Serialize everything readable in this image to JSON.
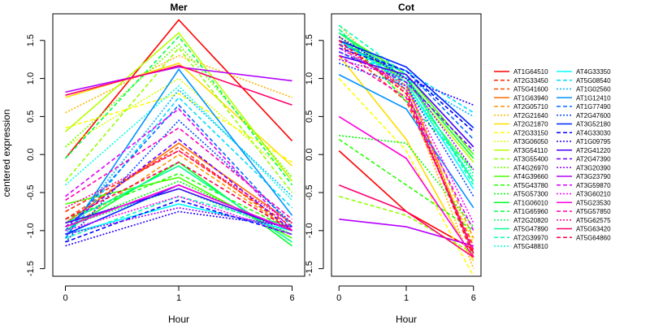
{
  "chart_data": [
    {
      "type": "line",
      "title": "Mer",
      "xlabel": "Hour",
      "ylabel": "centered expression",
      "x": [
        "0",
        "1",
        "6"
      ],
      "ylim": [
        -1.6,
        1.85
      ],
      "yticks": [
        -1.5,
        -1.0,
        -0.5,
        0.0,
        0.5,
        1.0,
        1.5
      ],
      "series": [
        {
          "name": "AT1G64510",
          "values": [
            -0.05,
            1.77,
            0.18
          ]
        },
        {
          "name": "AT2G33450",
          "values": [
            -0.75,
            0.05,
            -0.95
          ]
        },
        {
          "name": "AT5G41600",
          "values": [
            -0.85,
            0.1,
            -1.0
          ]
        },
        {
          "name": "AT1G63940",
          "values": [
            -0.9,
            0.15,
            -0.9
          ]
        },
        {
          "name": "AT2G05710",
          "values": [
            -1.0,
            0.0,
            -1.0
          ]
        },
        {
          "name": "AT2G21640",
          "values": [
            0.55,
            1.3,
            0.75
          ]
        },
        {
          "name": "AT2G21870",
          "values": [
            0.75,
            1.2,
            -0.15
          ]
        },
        {
          "name": "AT2G33150",
          "values": [
            0.35,
            0.8,
            -0.1
          ]
        },
        {
          "name": "AT3G06050",
          "values": [
            0.1,
            1.0,
            -0.3
          ]
        },
        {
          "name": "AT3G54110",
          "values": [
            0.3,
            1.6,
            -0.35
          ]
        },
        {
          "name": "AT3G55400",
          "values": [
            -0.35,
            1.4,
            -0.5
          ]
        },
        {
          "name": "AT4G26970",
          "values": [
            0.1,
            1.45,
            -0.3
          ]
        },
        {
          "name": "AT4G39660",
          "values": [
            -0.65,
            -0.3,
            -1.1
          ]
        },
        {
          "name": "AT5G43780",
          "values": [
            -0.85,
            -0.25,
            -1.0
          ]
        },
        {
          "name": "AT5G57300",
          "values": [
            -0.95,
            -0.35,
            -1.05
          ]
        },
        {
          "name": "AT1G06010",
          "values": [
            -1.0,
            -0.1,
            -1.2
          ]
        },
        {
          "name": "AT1G65960",
          "values": [
            -0.05,
            1.55,
            -0.4
          ]
        },
        {
          "name": "AT2G20820",
          "values": [
            -0.95,
            -0.45,
            -1.05
          ]
        },
        {
          "name": "AT5G47890",
          "values": [
            -0.9,
            -0.15,
            -1.15
          ]
        },
        {
          "name": "AT2G39970",
          "values": [
            -1.1,
            -0.55,
            -0.95
          ]
        },
        {
          "name": "AT5G48810",
          "values": [
            -0.4,
            0.9,
            -0.6
          ]
        },
        {
          "name": "AT4G33350",
          "values": [
            -1.05,
            -0.65,
            -1.0
          ]
        },
        {
          "name": "AT5G08540",
          "values": [
            -1.1,
            0.75,
            -0.7
          ]
        },
        {
          "name": "AT1G02560",
          "values": [
            -1.05,
            0.85,
            -0.55
          ]
        },
        {
          "name": "AT1G12410",
          "values": [
            -1.1,
            1.12,
            -0.8
          ]
        },
        {
          "name": "AT1G77490",
          "values": [
            -1.0,
            0.65,
            -0.95
          ]
        },
        {
          "name": "AT2G47600",
          "values": [
            -1.15,
            0.45,
            -0.9
          ]
        },
        {
          "name": "AT3G52180",
          "values": [
            -1.05,
            -0.4,
            -1.0
          ]
        },
        {
          "name": "AT4G33030",
          "values": [
            -1.15,
            -0.6,
            -1.05
          ]
        },
        {
          "name": "AT1G09795",
          "values": [
            -1.2,
            -0.75,
            -0.95
          ]
        },
        {
          "name": "AT2G41220",
          "values": [
            -0.9,
            -0.45,
            -1.0
          ]
        },
        {
          "name": "AT2G47390",
          "values": [
            -0.95,
            0.2,
            -1.0
          ]
        },
        {
          "name": "AT3G20390",
          "values": [
            -1.05,
            -0.7,
            -0.95
          ]
        },
        {
          "name": "AT3G23790",
          "values": [
            0.82,
            1.15,
            0.97
          ]
        },
        {
          "name": "AT3G59870",
          "values": [
            -0.55,
            0.6,
            -1.0
          ]
        },
        {
          "name": "AT3G60210",
          "values": [
            -1.0,
            -0.55,
            -1.05
          ]
        },
        {
          "name": "AT5G23530",
          "values": [
            -0.95,
            -0.4,
            -1.0
          ]
        },
        {
          "name": "AT5G57850",
          "values": [
            -0.6,
            0.35,
            -0.85
          ]
        },
        {
          "name": "AT5G62575",
          "values": [
            -0.7,
            0.05,
            -0.9
          ]
        },
        {
          "name": "AT5G63420",
          "values": [
            0.78,
            1.17,
            0.65
          ]
        },
        {
          "name": "AT5G64860",
          "values": [
            -0.85,
            -0.1,
            -1.0
          ]
        }
      ]
    },
    {
      "type": "line",
      "title": "Cot",
      "xlabel": "Hour",
      "ylabel": "",
      "x": [
        "0",
        "1",
        "6"
      ],
      "ylim": [
        -1.6,
        1.85
      ],
      "yticks": [
        -1.5,
        -1.0,
        -0.5,
        0.0,
        0.5,
        1.0,
        1.5
      ],
      "series": [
        {
          "name": "AT1G64510",
          "values": [
            0.05,
            -0.75,
            -1.25
          ]
        },
        {
          "name": "AT2G33450",
          "values": [
            1.5,
            0.85,
            -1.35
          ]
        },
        {
          "name": "AT5G41600",
          "values": [
            1.45,
            0.7,
            -1.2
          ]
        },
        {
          "name": "AT1G63940",
          "values": [
            1.6,
            0.95,
            -1.3
          ]
        },
        {
          "name": "AT2G05710",
          "values": [
            1.55,
            0.9,
            -1.1
          ]
        },
        {
          "name": "AT2G21640",
          "values": [
            1.7,
            0.8,
            -1.5
          ]
        },
        {
          "name": "AT2G21870",
          "values": [
            1.3,
            0.2,
            -1.4
          ]
        },
        {
          "name": "AT2G33150",
          "values": [
            1.0,
            0.05,
            -1.6
          ]
        },
        {
          "name": "AT3G06050",
          "values": [
            1.55,
            0.75,
            -1.15
          ]
        },
        {
          "name": "AT3G54110",
          "values": [
            1.6,
            0.95,
            -0.1
          ]
        },
        {
          "name": "AT3G55400",
          "values": [
            -0.55,
            -0.8,
            -1.3
          ]
        },
        {
          "name": "AT4G26970",
          "values": [
            1.45,
            0.85,
            -0.2
          ]
        },
        {
          "name": "AT4G39660",
          "values": [
            1.6,
            1.05,
            0.0
          ]
        },
        {
          "name": "AT5G43780",
          "values": [
            0.2,
            -0.4,
            -1.0
          ]
        },
        {
          "name": "AT5G57300",
          "values": [
            0.25,
            0.15,
            -0.95
          ]
        },
        {
          "name": "AT1G06010",
          "values": [
            1.5,
            1.0,
            -0.05
          ]
        },
        {
          "name": "AT1G65960",
          "values": [
            1.65,
            0.7,
            -0.2
          ]
        },
        {
          "name": "AT2G20820",
          "values": [
            1.55,
            0.9,
            -0.25
          ]
        },
        {
          "name": "AT5G47890",
          "values": [
            1.6,
            1.0,
            -0.35
          ]
        },
        {
          "name": "AT2G39970",
          "values": [
            1.7,
            1.05,
            -0.4
          ]
        },
        {
          "name": "AT5G48810",
          "values": [
            1.65,
            0.85,
            -0.3
          ]
        },
        {
          "name": "AT4G33350",
          "values": [
            1.5,
            0.95,
            -0.45
          ]
        },
        {
          "name": "AT5G08540",
          "values": [
            1.3,
            1.1,
            0.55
          ]
        },
        {
          "name": "AT1G02560",
          "values": [
            1.35,
            1.0,
            0.5
          ]
        },
        {
          "name": "AT1G12410",
          "values": [
            1.05,
            0.6,
            -0.7
          ]
        },
        {
          "name": "AT1G77490",
          "values": [
            1.45,
            1.1,
            0.2
          ]
        },
        {
          "name": "AT2G47600",
          "values": [
            1.2,
            0.9,
            -0.55
          ]
        },
        {
          "name": "AT3G52180",
          "values": [
            1.5,
            1.15,
            0.35
          ]
        },
        {
          "name": "AT4G33030",
          "values": [
            1.4,
            1.1,
            0.3
          ]
        },
        {
          "name": "AT1G09795",
          "values": [
            1.55,
            1.0,
            0.65
          ]
        },
        {
          "name": "AT2G41220",
          "values": [
            1.3,
            1.05,
            0.1
          ]
        },
        {
          "name": "AT2G47390",
          "values": [
            1.35,
            0.95,
            0.05
          ]
        },
        {
          "name": "AT3G20390",
          "values": [
            1.25,
            1.0,
            -0.2
          ]
        },
        {
          "name": "AT3G23790",
          "values": [
            -0.85,
            -0.95,
            -1.2
          ]
        },
        {
          "name": "AT3G59870",
          "values": [
            1.5,
            0.8,
            -1.0
          ]
        },
        {
          "name": "AT3G60210",
          "values": [
            1.4,
            0.9,
            -0.9
          ]
        },
        {
          "name": "AT5G23530",
          "values": [
            0.5,
            -0.05,
            -1.35
          ]
        },
        {
          "name": "AT5G57850",
          "values": [
            1.3,
            0.75,
            -1.25
          ]
        },
        {
          "name": "AT5G62575",
          "values": [
            1.45,
            0.85,
            -1.3
          ]
        },
        {
          "name": "AT5G63420",
          "values": [
            -0.4,
            -0.75,
            -1.35
          ]
        },
        {
          "name": "AT5G64860",
          "values": [
            1.5,
            0.8,
            -1.3
          ]
        }
      ]
    }
  ],
  "legend": {
    "placement": "right",
    "columns": 2,
    "entries": [
      {
        "name": "AT1G64510",
        "color": "#FF0000",
        "dash": "solid"
      },
      {
        "name": "AT2G33450",
        "color": "#FF2400",
        "dash": "dashed"
      },
      {
        "name": "AT5G41600",
        "color": "#FF4900",
        "dash": "dashed"
      },
      {
        "name": "AT1G63940",
        "color": "#FF6D00",
        "dash": "solid"
      },
      {
        "name": "AT2G05710",
        "color": "#FF9200",
        "dash": "dashed"
      },
      {
        "name": "AT2G21640",
        "color": "#FFB600",
        "dash": "dotted"
      },
      {
        "name": "AT2G21870",
        "color": "#FFDB00",
        "dash": "solid"
      },
      {
        "name": "AT2G33150",
        "color": "#FFFF00",
        "dash": "dashed"
      },
      {
        "name": "AT3G06050",
        "color": "#DBFF00",
        "dash": "dotted"
      },
      {
        "name": "AT3G54110",
        "color": "#B6FF00",
        "dash": "solid"
      },
      {
        "name": "AT3G55400",
        "color": "#92FF00",
        "dash": "dashed"
      },
      {
        "name": "AT4G26970",
        "color": "#6DFF00",
        "dash": "dotted"
      },
      {
        "name": "AT4G39660",
        "color": "#49FF00",
        "dash": "solid"
      },
      {
        "name": "AT5G43780",
        "color": "#24FF00",
        "dash": "dashed"
      },
      {
        "name": "AT5G57300",
        "color": "#00FF00",
        "dash": "dotted"
      },
      {
        "name": "AT1G06010",
        "color": "#00FF24",
        "dash": "solid"
      },
      {
        "name": "AT1G65960",
        "color": "#00FF49",
        "dash": "dashed"
      },
      {
        "name": "AT2G20820",
        "color": "#00FF6D",
        "dash": "dotted"
      },
      {
        "name": "AT5G47890",
        "color": "#00FF92",
        "dash": "solid"
      },
      {
        "name": "AT2G39970",
        "color": "#00FFB6",
        "dash": "dashed"
      },
      {
        "name": "AT5G48810",
        "color": "#00FFDB",
        "dash": "dotted"
      },
      {
        "name": "AT4G33350",
        "color": "#00FFFF",
        "dash": "solid"
      },
      {
        "name": "AT5G08540",
        "color": "#00DBFF",
        "dash": "dashed"
      },
      {
        "name": "AT1G02560",
        "color": "#00B6FF",
        "dash": "dotted"
      },
      {
        "name": "AT1G12410",
        "color": "#0092FF",
        "dash": "solid"
      },
      {
        "name": "AT1G77490",
        "color": "#006DFF",
        "dash": "dashed"
      },
      {
        "name": "AT2G47600",
        "color": "#0049FF",
        "dash": "dotted"
      },
      {
        "name": "AT3G52180",
        "color": "#0024FF",
        "dash": "solid"
      },
      {
        "name": "AT4G33030",
        "color": "#0000FF",
        "dash": "dashed"
      },
      {
        "name": "AT1G09795",
        "color": "#2400FF",
        "dash": "dotted"
      },
      {
        "name": "AT2G41220",
        "color": "#4900FF",
        "dash": "solid"
      },
      {
        "name": "AT2G47390",
        "color": "#6D00FF",
        "dash": "dashed"
      },
      {
        "name": "AT3G20390",
        "color": "#9200FF",
        "dash": "dotted"
      },
      {
        "name": "AT3G23790",
        "color": "#B600FF",
        "dash": "solid"
      },
      {
        "name": "AT3G59870",
        "color": "#DB00FF",
        "dash": "dashed"
      },
      {
        "name": "AT3G60210",
        "color": "#FF00FF",
        "dash": "dotted"
      },
      {
        "name": "AT5G23530",
        "color": "#FF00DB",
        "dash": "solid"
      },
      {
        "name": "AT5G57850",
        "color": "#FF00B6",
        "dash": "dashed"
      },
      {
        "name": "AT5G62575",
        "color": "#FF0092",
        "dash": "dotted"
      },
      {
        "name": "AT5G63420",
        "color": "#FF006D",
        "dash": "solid"
      },
      {
        "name": "AT5G64860",
        "color": "#FF0049",
        "dash": "dashed"
      }
    ]
  }
}
